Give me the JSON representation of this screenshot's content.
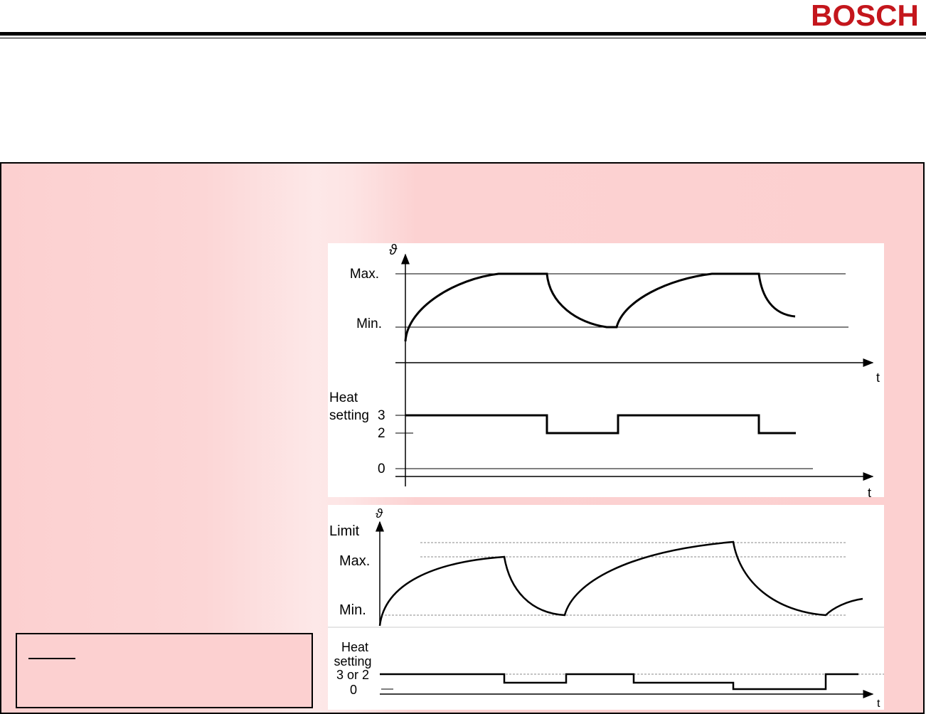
{
  "header": {
    "logo_text": "BOSCH",
    "logo_color": "#c4161c"
  },
  "panel": {
    "background_color": "#fcd0d0"
  },
  "figure_top": {
    "symbol": "ϑ",
    "temp_labels": {
      "max": "Max.",
      "min": "Min."
    },
    "time_label": "t",
    "heat_title_line1": "Heat",
    "heat_title_line2": "setting",
    "levels": {
      "three": "3",
      "two": "2",
      "zero": "0"
    },
    "time_label_2": "t"
  },
  "figure_bottom": {
    "symbol": "ϑ",
    "temp_labels": {
      "limit": "Limit",
      "max": "Max.",
      "min": "Min."
    },
    "heat_title_line1": "Heat",
    "heat_title_line2": "setting",
    "heat_title_line3": "3 or 2",
    "level_zero": "0",
    "time_label": "t"
  }
}
